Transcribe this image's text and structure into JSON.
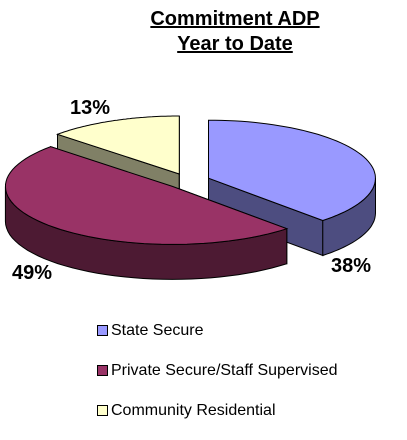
{
  "chart_data": {
    "type": "pie",
    "title": [
      "Commitment ADP",
      "Year to Date"
    ],
    "series": [
      {
        "name": "State Secure",
        "value": 38,
        "label": "38%",
        "color": "#9999ff",
        "side_color": "#4d4d80"
      },
      {
        "name": "Private Secure/Staff Supervised",
        "value": 49,
        "label": "49%",
        "color": "#993366",
        "side_color": "#4d1a33"
      },
      {
        "name": "Community Residential",
        "value": 13,
        "label": "13%",
        "color": "#ffffcc",
        "side_color": "#808066"
      }
    ],
    "legend_position": "bottom",
    "style": "3d-exploded"
  }
}
